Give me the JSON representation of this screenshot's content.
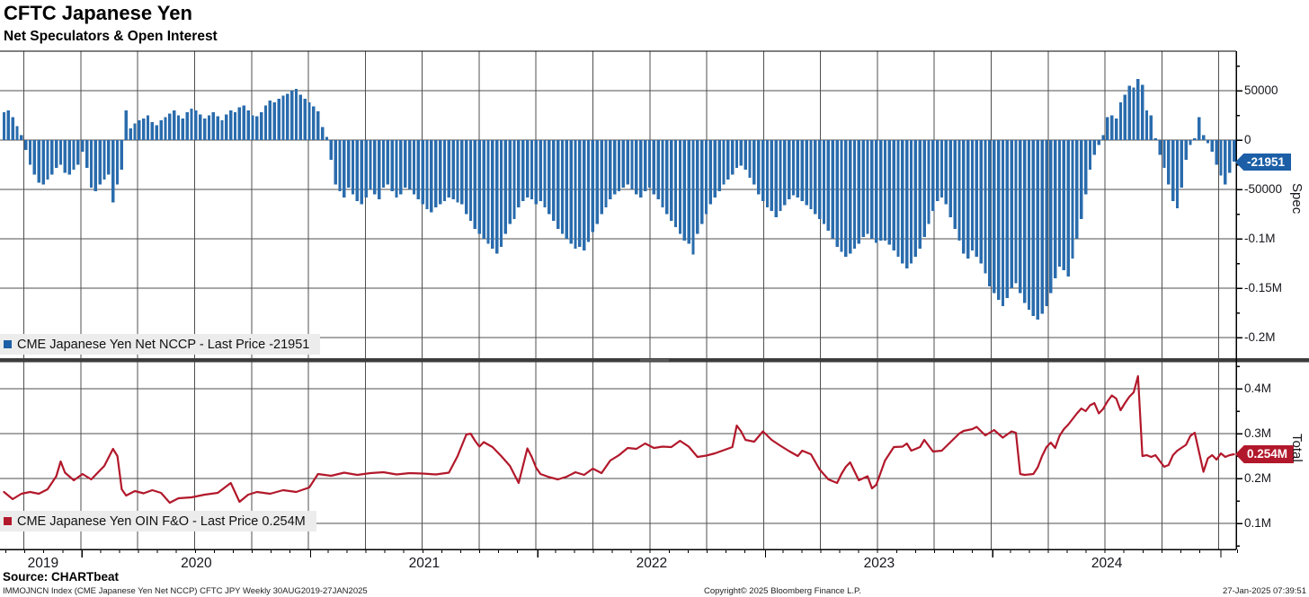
{
  "header": {
    "title": "CFTC Japanese Yen",
    "subtitle": "Net Speculators & Open Interest"
  },
  "panels": {
    "spec": {
      "legend": "CME Japanese Yen Net NCCP - Last Price -21951",
      "axis_unit": "Spec",
      "badge": "-21951"
    },
    "total": {
      "legend": "CME Japanese Yen OIN F&O - Last Price 0.254M",
      "axis_unit": "Total",
      "badge": "0.254M"
    }
  },
  "footer": {
    "source": "Source: CHARTbeat",
    "ticker_info": "IMMOJNCN Index (CME Japanese Yen Net NCCP) CFTC JPY  Weekly 30AUG2019-27JAN2025",
    "copyright": "Copyright© 2025 Bloomberg Finance L.P.",
    "timestamp": "27-Jan-2025 07:39:51"
  },
  "colors": {
    "bar": "#2a6cad",
    "line": "#b2182b",
    "grid": "#4f4f4f",
    "frame": "#000000",
    "divider": "#3c3c3c",
    "legend_bg": "#ececec",
    "badge_spec_bg": "#1c5fa7",
    "badge_total_bg": "#b2182b"
  },
  "x_axis": {
    "start_label": "30AUG2019",
    "end_label": "27JAN2025",
    "frequency": "Weekly",
    "total_weeks": 283,
    "years": [
      {
        "label": "2019",
        "start_week": 0,
        "end_week": 17.9
      },
      {
        "label": "2020",
        "start_week": 17.9,
        "end_week": 70.3
      },
      {
        "label": "2021",
        "start_week": 70.3,
        "end_week": 122.4
      },
      {
        "label": "2022",
        "start_week": 122.4,
        "end_week": 174.6
      },
      {
        "label": "2023",
        "start_week": 174.6,
        "end_week": 226.7
      },
      {
        "label": "2024",
        "start_week": 226.7,
        "end_week": 279.0
      }
    ],
    "quarter_first_week": 4.57,
    "weeks_per_quarter": 13.045,
    "month_first_week": 0.43,
    "weeks_per_month": 4.345
  },
  "chart_data": [
    {
      "type": "bar",
      "name": "CME Japanese Yen Net NCCP",
      "panel": "Spec",
      "last_price": -21951,
      "ylim": [
        -220000,
        90000
      ],
      "grid": true,
      "legend_position": "bottom-left",
      "y_ticks": [
        {
          "v": 50000,
          "label": "50000"
        },
        {
          "v": 0,
          "label": "0"
        },
        {
          "v": -50000,
          "label": "-50000"
        },
        {
          "v": -100000,
          "label": "-0.1M"
        },
        {
          "v": -150000,
          "label": "-0.15M"
        },
        {
          "v": -200000,
          "label": "-0.2M"
        }
      ],
      "y_minor_ticks": [
        75000,
        25000,
        -25000,
        -75000,
        -125000,
        -175000
      ],
      "values": [
        28000,
        30000,
        23000,
        14000,
        5000,
        -10000,
        -25000,
        -35000,
        -43000,
        -45000,
        -40000,
        -35000,
        -28000,
        -25000,
        -33000,
        -35000,
        -30000,
        -25000,
        -12000,
        -28000,
        -48000,
        -52000,
        -45000,
        -40000,
        -35000,
        -63000,
        -45000,
        -30000,
        30000,
        12000,
        17000,
        20000,
        22000,
        25000,
        18000,
        15000,
        20000,
        23000,
        27000,
        30000,
        25000,
        22000,
        28000,
        32000,
        30000,
        26000,
        22000,
        25000,
        28000,
        24000,
        20000,
        26000,
        30000,
        28000,
        33000,
        35000,
        30000,
        25000,
        24000,
        28000,
        35000,
        40000,
        38000,
        42000,
        45000,
        47000,
        50000,
        52000,
        46000,
        42000,
        38000,
        34000,
        29000,
        13000,
        3000,
        -20000,
        -45000,
        -52000,
        -58000,
        -48000,
        -55000,
        -62000,
        -65000,
        -58000,
        -50000,
        -55000,
        -60000,
        -48000,
        -45000,
        -52000,
        -58000,
        -55000,
        -48000,
        -50000,
        -55000,
        -60000,
        -65000,
        -70000,
        -73000,
        -68000,
        -65000,
        -62000,
        -58000,
        -60000,
        -63000,
        -65000,
        -75000,
        -82000,
        -90000,
        -95000,
        -100000,
        -105000,
        -110000,
        -115000,
        -108000,
        -95000,
        -85000,
        -80000,
        -68000,
        -62000,
        -58000,
        -60000,
        -65000,
        -62000,
        -68000,
        -75000,
        -82000,
        -90000,
        -95000,
        -100000,
        -105000,
        -110000,
        -108000,
        -112000,
        -103000,
        -93000,
        -85000,
        -75000,
        -68000,
        -60000,
        -55000,
        -52000,
        -48000,
        -45000,
        -50000,
        -55000,
        -58000,
        -52000,
        -48000,
        -55000,
        -60000,
        -68000,
        -75000,
        -82000,
        -88000,
        -95000,
        -102000,
        -105000,
        -116000,
        -95000,
        -85000,
        -75000,
        -65000,
        -58000,
        -52000,
        -45000,
        -40000,
        -35000,
        -28000,
        -26000,
        -30000,
        -38000,
        -45000,
        -55000,
        -62000,
        -68000,
        -72000,
        -78000,
        -72000,
        -66000,
        -60000,
        -56000,
        -58000,
        -62000,
        -66000,
        -70000,
        -75000,
        -80000,
        -85000,
        -92000,
        -100000,
        -108000,
        -113000,
        -118000,
        -115000,
        -110000,
        -105000,
        -98000,
        -95000,
        -100000,
        -104000,
        -102000,
        -102000,
        -106000,
        -112000,
        -118000,
        -125000,
        -130000,
        -125000,
        -118000,
        -110000,
        -98000,
        -85000,
        -72000,
        -62000,
        -58000,
        -65000,
        -78000,
        -90000,
        -102000,
        -115000,
        -120000,
        -112000,
        -118000,
        -125000,
        -135000,
        -148000,
        -155000,
        -162000,
        -168000,
        -160000,
        -150000,
        -145000,
        -155000,
        -165000,
        -172000,
        -178000,
        -182000,
        -176000,
        -168000,
        -155000,
        -140000,
        -128000,
        -132000,
        -138000,
        -120000,
        -100000,
        -80000,
        -55000,
        -30000,
        -15000,
        -5000,
        5000,
        23000,
        25000,
        22000,
        38000,
        46000,
        55000,
        53000,
        62000,
        56000,
        30000,
        25000,
        2000,
        -15000,
        -28000,
        -45000,
        -62000,
        -69000,
        -48000,
        -20000,
        -5000,
        2000,
        23000,
        5000,
        -3000,
        -12000,
        -25000,
        -36000,
        -45000,
        -33000,
        -21951
      ]
    },
    {
      "type": "line",
      "name": "CME Japanese Yen OIN F&O",
      "panel": "Total",
      "unit": "millions of contracts",
      "last_price": 0.254,
      "ylim": [
        0.04,
        0.46
      ],
      "grid": true,
      "legend_position": "bottom-left",
      "y_ticks": [
        {
          "v": 0.4,
          "label": "0.4M"
        },
        {
          "v": 0.3,
          "label": "0.3M"
        },
        {
          "v": 0.2,
          "label": "0.2M"
        },
        {
          "v": 0.1,
          "label": "0.1M"
        }
      ],
      "y_minor_ticks": [
        0.45,
        0.35,
        0.25,
        0.15,
        0.05
      ],
      "points": [
        [
          0,
          0.17
        ],
        [
          2,
          0.154
        ],
        [
          4,
          0.166
        ],
        [
          6,
          0.17
        ],
        [
          8,
          0.166
        ],
        [
          10,
          0.176
        ],
        [
          12,
          0.205
        ],
        [
          13,
          0.238
        ],
        [
          14,
          0.213
        ],
        [
          16,
          0.196
        ],
        [
          18,
          0.21
        ],
        [
          20,
          0.198
        ],
        [
          23,
          0.228
        ],
        [
          25,
          0.266
        ],
        [
          26,
          0.25
        ],
        [
          27,
          0.176
        ],
        [
          28,
          0.162
        ],
        [
          30,
          0.172
        ],
        [
          32,
          0.167
        ],
        [
          34,
          0.174
        ],
        [
          36,
          0.168
        ],
        [
          38,
          0.146
        ],
        [
          40,
          0.156
        ],
        [
          43,
          0.158
        ],
        [
          46,
          0.164
        ],
        [
          49,
          0.168
        ],
        [
          52,
          0.19
        ],
        [
          54,
          0.148
        ],
        [
          56,
          0.164
        ],
        [
          58,
          0.17
        ],
        [
          61,
          0.166
        ],
        [
          64,
          0.174
        ],
        [
          67,
          0.17
        ],
        [
          70,
          0.18
        ],
        [
          72,
          0.21
        ],
        [
          75,
          0.206
        ],
        [
          78,
          0.213
        ],
        [
          81,
          0.208
        ],
        [
          84,
          0.212
        ],
        [
          87,
          0.214
        ],
        [
          90,
          0.209
        ],
        [
          93,
          0.212
        ],
        [
          96,
          0.211
        ],
        [
          99,
          0.209
        ],
        [
          102,
          0.213
        ],
        [
          104,
          0.25
        ],
        [
          106,
          0.298
        ],
        [
          107,
          0.3
        ],
        [
          108,
          0.284
        ],
        [
          109,
          0.271
        ],
        [
          110,
          0.281
        ],
        [
          112,
          0.27
        ],
        [
          114,
          0.25
        ],
        [
          116,
          0.228
        ],
        [
          118,
          0.19
        ],
        [
          120,
          0.267
        ],
        [
          121,
          0.248
        ],
        [
          122,
          0.224
        ],
        [
          123,
          0.21
        ],
        [
          125,
          0.203
        ],
        [
          127,
          0.198
        ],
        [
          129,
          0.204
        ],
        [
          131,
          0.214
        ],
        [
          133,
          0.208
        ],
        [
          135,
          0.222
        ],
        [
          137,
          0.212
        ],
        [
          139,
          0.24
        ],
        [
          141,
          0.252
        ],
        [
          143,
          0.268
        ],
        [
          145,
          0.266
        ],
        [
          147,
          0.278
        ],
        [
          149,
          0.268
        ],
        [
          151,
          0.271
        ],
        [
          153,
          0.27
        ],
        [
          155,
          0.284
        ],
        [
          157,
          0.271
        ],
        [
          159,
          0.248
        ],
        [
          161,
          0.251
        ],
        [
          163,
          0.256
        ],
        [
          165,
          0.263
        ],
        [
          167,
          0.27
        ],
        [
          168,
          0.318
        ],
        [
          169,
          0.305
        ],
        [
          170,
          0.286
        ],
        [
          172,
          0.282
        ],
        [
          174,
          0.305
        ],
        [
          176,
          0.286
        ],
        [
          178,
          0.273
        ],
        [
          180,
          0.261
        ],
        [
          182,
          0.25
        ],
        [
          183,
          0.262
        ],
        [
          185,
          0.254
        ],
        [
          187,
          0.22
        ],
        [
          189,
          0.198
        ],
        [
          191,
          0.19
        ],
        [
          192,
          0.21
        ],
        [
          193,
          0.226
        ],
        [
          194,
          0.236
        ],
        [
          196,
          0.196
        ],
        [
          198,
          0.205
        ],
        [
          199,
          0.178
        ],
        [
          200,
          0.186
        ],
        [
          202,
          0.24
        ],
        [
          204,
          0.27
        ],
        [
          206,
          0.271
        ],
        [
          207,
          0.278
        ],
        [
          208,
          0.262
        ],
        [
          210,
          0.27
        ],
        [
          211,
          0.286
        ],
        [
          213,
          0.26
        ],
        [
          215,
          0.262
        ],
        [
          217,
          0.281
        ],
        [
          219,
          0.3
        ],
        [
          220,
          0.306
        ],
        [
          222,
          0.31
        ],
        [
          223,
          0.315
        ],
        [
          225,
          0.296
        ],
        [
          227,
          0.308
        ],
        [
          229,
          0.291
        ],
        [
          231,
          0.305
        ],
        [
          232,
          0.302
        ],
        [
          233,
          0.21
        ],
        [
          234,
          0.208
        ],
        [
          235,
          0.209
        ],
        [
          236,
          0.21
        ],
        [
          237,
          0.225
        ],
        [
          238,
          0.25
        ],
        [
          239,
          0.27
        ],
        [
          240,
          0.28
        ],
        [
          241,
          0.268
        ],
        [
          242,
          0.295
        ],
        [
          243,
          0.31
        ],
        [
          244,
          0.32
        ],
        [
          246,
          0.345
        ],
        [
          247,
          0.356
        ],
        [
          248,
          0.35
        ],
        [
          249,
          0.363
        ],
        [
          250,
          0.368
        ],
        [
          251,
          0.345
        ],
        [
          252,
          0.355
        ],
        [
          253,
          0.372
        ],
        [
          254,
          0.385
        ],
        [
          255,
          0.378
        ],
        [
          256,
          0.352
        ],
        [
          257,
          0.368
        ],
        [
          258,
          0.382
        ],
        [
          259,
          0.392
        ],
        [
          260,
          0.428
        ],
        [
          261,
          0.25
        ],
        [
          262,
          0.252
        ],
        [
          263,
          0.248
        ],
        [
          264,
          0.252
        ],
        [
          266,
          0.226
        ],
        [
          267,
          0.23
        ],
        [
          268,
          0.252
        ],
        [
          269,
          0.262
        ],
        [
          271,
          0.275
        ],
        [
          272,
          0.295
        ],
        [
          273,
          0.302
        ],
        [
          274,
          0.258
        ],
        [
          275,
          0.215
        ],
        [
          276,
          0.245
        ],
        [
          277,
          0.252
        ],
        [
          278,
          0.242
        ],
        [
          279,
          0.256
        ],
        [
          280,
          0.248
        ],
        [
          281,
          0.252
        ],
        [
          282,
          0.254
        ]
      ]
    }
  ]
}
